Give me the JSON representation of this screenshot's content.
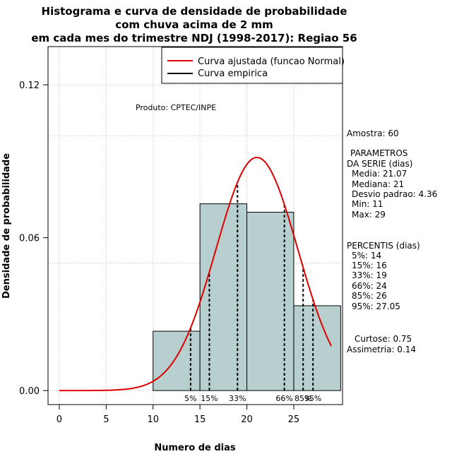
{
  "chart_data": {
    "type": "bar",
    "title": [
      "Histograma e curva de densidade de probabilidade",
      "com chuva acima de 2 mm",
      "em cada mes do trimestre NDJ (1998-2017): Regiao 56"
    ],
    "xlabel": "Numero de dias",
    "ylabel": "Densidade de probabilidade",
    "xlim": [
      -1.2,
      30.2
    ],
    "ylim": [
      -0.0055,
      0.135
    ],
    "xticks": [
      0,
      5,
      10,
      15,
      20,
      25
    ],
    "yticks": [
      0.0,
      0.06,
      0.12
    ],
    "ytick_labels": [
      "0.00",
      "0.06",
      "0.12"
    ],
    "grid_x": [
      0,
      5,
      10,
      15,
      20,
      25
    ],
    "grid_y": [
      0.0,
      0.05,
      0.1,
      0.12
    ],
    "bins": [
      {
        "start": 10,
        "end": 15,
        "density": 0.0233
      },
      {
        "start": 15,
        "end": 20,
        "density": 0.0733
      },
      {
        "start": 20,
        "end": 25,
        "density": 0.07
      },
      {
        "start": 25,
        "end": 30,
        "density": 0.0333
      }
    ],
    "normal_curve": {
      "mean": 21.07,
      "sd": 4.36,
      "x_from": 0,
      "x_to": 29
    },
    "percentiles": [
      {
        "label": "5%",
        "value": 14
      },
      {
        "label": "15%",
        "value": 16
      },
      {
        "label": "33%",
        "value": 19
      },
      {
        "label": "66%",
        "value": 24
      },
      {
        "label": "85%",
        "value": 26
      },
      {
        "label": "95%",
        "value": 27.05
      }
    ],
    "legend": [
      {
        "label": "Curva ajustada (funcao Normal)",
        "color": "#e00000"
      },
      {
        "label": "Curva empirica",
        "color": "#000000"
      }
    ],
    "legend_position": "top-right",
    "colors": {
      "bar_fill": "#b8cfcf",
      "curve": "#e00000",
      "grid": "#bdbdbd"
    }
  },
  "annotation": {
    "produto": "Produto: CPTEC/INPE"
  },
  "side_panel": {
    "amostra": "Amostra: 60",
    "param_title_1": "PARAMETROS",
    "param_title_2": "DA SERIE (dias)",
    "media": "Media: 21.07",
    "mediana": "Mediana: 21",
    "desvio": "Desvio padrao: 4.36",
    "min": "Min: 11",
    "max": "Max: 29",
    "perc_title": "PERCENTIS (dias)",
    "p5": "5%: 14",
    "p15": "15%: 16",
    "p33": "33%: 19",
    "p66": "66%: 24",
    "p85": "85%: 26",
    "p95": "95%: 27.05",
    "curtose": "Curtose: 0.75",
    "assimetria": "Assimetria: 0.14"
  }
}
